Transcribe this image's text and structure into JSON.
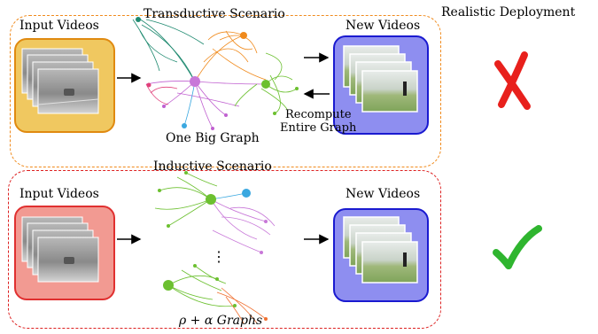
{
  "header": {
    "realistic_deployment": "Realistic Deployment"
  },
  "transductive": {
    "title": "Transductive Scenario",
    "input_label": "Input Videos",
    "output_label": "New Videos",
    "graph_label": "One Big Graph",
    "recompute_line1": "Recompute",
    "recompute_line2": "Entire Graph",
    "verdict_icon": "red-cross-icon",
    "verdict_color": "#e8201c"
  },
  "inductive": {
    "title": "Inductive Scenario",
    "input_label": "Input Videos",
    "output_label": "New Videos",
    "graph_label": "ρ + α  Graphs",
    "ellipsis": "⋮",
    "verdict_icon": "green-check-icon",
    "verdict_color": "#2fb52f"
  },
  "colors": {
    "orange_dashed": "#f08a1c",
    "red_dashed": "#dd2020",
    "input_box_top": "#f0c860",
    "input_box_bottom": "#f29a92",
    "output_box": "#8e8ef0",
    "output_box_border": "#1a1ad0"
  }
}
